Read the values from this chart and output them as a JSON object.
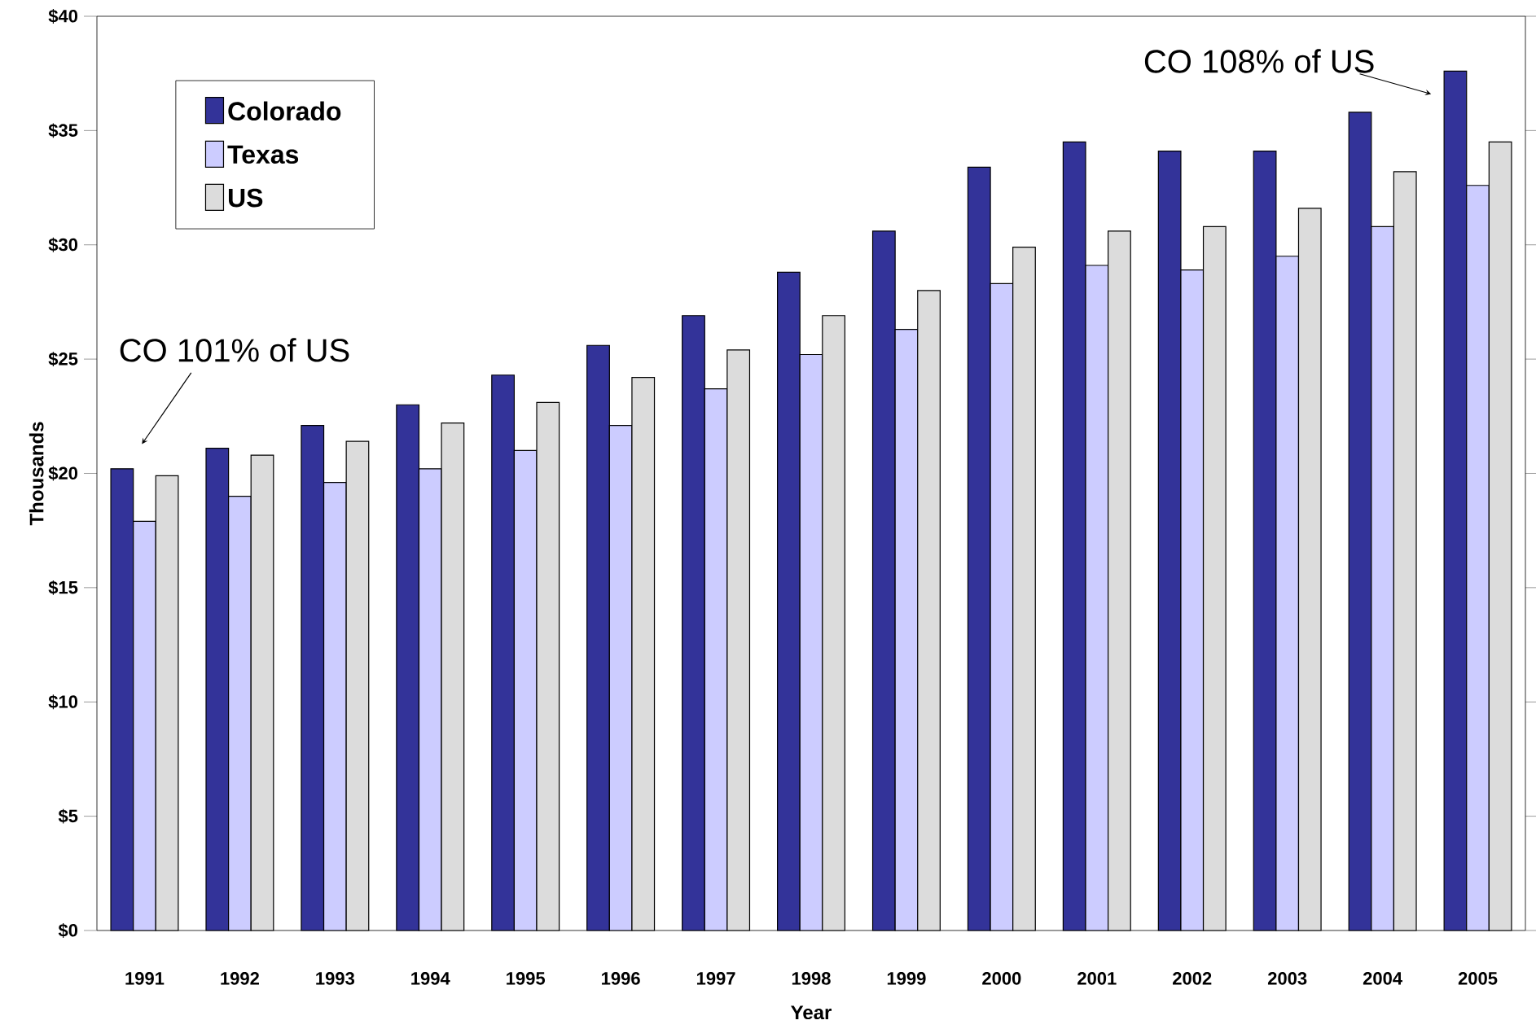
{
  "chart_data": {
    "type": "bar",
    "xlabel": "Year",
    "ylabel": "Thousands",
    "categories": [
      "1991",
      "1992",
      "1993",
      "1994",
      "1995",
      "1996",
      "1997",
      "1998",
      "1999",
      "2000",
      "2001",
      "2002",
      "2003",
      "2004",
      "2005"
    ],
    "series": [
      {
        "name": "Colorado",
        "color": "#333399",
        "values": [
          20.2,
          21.1,
          22.1,
          23.0,
          24.3,
          25.6,
          26.9,
          28.8,
          30.6,
          33.4,
          34.5,
          34.1,
          34.1,
          35.8,
          37.6
        ]
      },
      {
        "name": "Texas",
        "color": "#ccccff",
        "values": [
          17.9,
          19.0,
          19.6,
          20.2,
          21.0,
          22.1,
          23.7,
          25.2,
          26.3,
          28.3,
          29.1,
          28.9,
          29.5,
          30.8,
          32.6
        ]
      },
      {
        "name": "US",
        "color": "#dcdcdc",
        "values": [
          19.9,
          20.8,
          21.4,
          22.2,
          23.1,
          24.2,
          25.4,
          26.9,
          28.0,
          29.9,
          30.6,
          30.8,
          31.6,
          33.2,
          34.5
        ]
      }
    ],
    "ylim": [
      0,
      40
    ],
    "yticks": [
      {
        "value": 0,
        "label": "$0"
      },
      {
        "value": 5,
        "label": "$5"
      },
      {
        "value": 10,
        "label": "$10"
      },
      {
        "value": 15,
        "label": "$15"
      },
      {
        "value": 20,
        "label": "$20"
      },
      {
        "value": 25,
        "label": "$25"
      },
      {
        "value": 30,
        "label": "$30"
      },
      {
        "value": 35,
        "label": "$35"
      },
      {
        "value": 40,
        "label": "$40"
      }
    ],
    "legend": "top left",
    "annotations": [
      "CO 101% of US",
      "CO 108% of US"
    ]
  }
}
